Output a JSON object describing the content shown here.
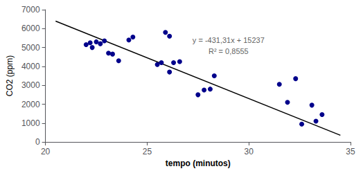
{
  "chart_data": {
    "type": "scatter",
    "xlabel": "tempo (minutos)",
    "ylabel": "CO2 (ppm)",
    "series": [
      {
        "type": "scatter",
        "color": "#00008B",
        "x": [
          22.0,
          22.2,
          22.3,
          22.5,
          22.7,
          22.9,
          23.1,
          23.3,
          23.6,
          24.1,
          24.3,
          25.5,
          25.7,
          25.9,
          26.1,
          26.1,
          26.3,
          26.6,
          27.5,
          27.8,
          28.1,
          28.3,
          31.5,
          31.9,
          32.3,
          32.6,
          33.1,
          33.3,
          33.6
        ],
        "values": [
          5150,
          5250,
          5000,
          5300,
          5200,
          5350,
          4700,
          4650,
          4300,
          5400,
          5550,
          4100,
          4200,
          5800,
          5600,
          3700,
          4200,
          4250,
          2500,
          2750,
          2800,
          3500,
          3050,
          2100,
          3350,
          950,
          1950,
          1100,
          1450
        ]
      },
      {
        "type": "line",
        "color": "#000000",
        "x": [
          20.5,
          34.5
        ],
        "values": [
          6395.145,
          356.805
        ]
      }
    ],
    "annotations": [
      {
        "text": "y = -431,31x + 15237",
        "x": 29.0,
        "y": 5600
      },
      {
        "text": "R² = 0,8555",
        "x": 29.0,
        "y": 5000
      }
    ],
    "xlim": [
      20,
      35
    ],
    "xticks": [
      20,
      25,
      30,
      35
    ],
    "ylim": [
      0,
      7000
    ],
    "yticks": [
      0,
      1000,
      2000,
      3000,
      4000,
      5000,
      6000,
      7000
    ],
    "grid": false
  }
}
